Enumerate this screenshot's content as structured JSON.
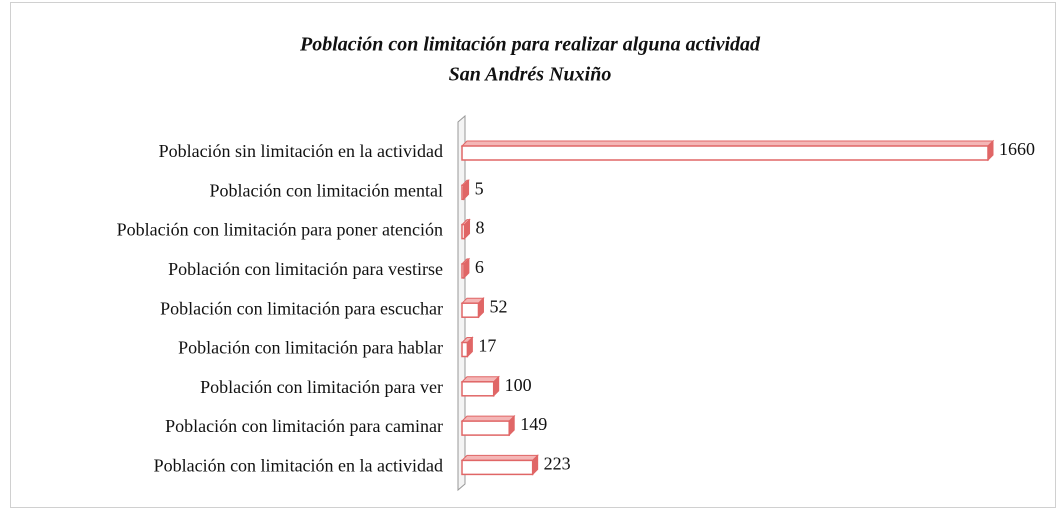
{
  "chart_data": {
    "type": "bar",
    "orientation": "horizontal",
    "title": "Población con limitación para realizar alguna actividad",
    "subtitle": "San Andrés Nuxiño",
    "categories": [
      "Población sin limitación en la actividad",
      "Población con limitación mental",
      "Población con limitación para poner atención",
      "Población con limitación para vestirse",
      "Población con limitación para escuchar",
      "Población con limitación para hablar",
      "Población con limitación para ver",
      "Población con limitación para caminar",
      "Población con limitación en la actividad"
    ],
    "values": [
      1660,
      5,
      8,
      6,
      52,
      17,
      100,
      149,
      223
    ],
    "color": "#e06666"
  }
}
